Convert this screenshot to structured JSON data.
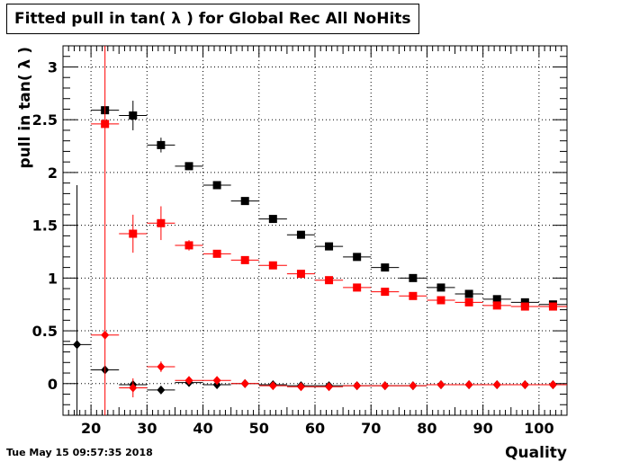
{
  "footer": {
    "timestamp": "Tue May 15 09:57:35 2018"
  },
  "chart_data": {
    "type": "scatter",
    "title": "Fitted pull in tan( λ ) for Global Rec All NoHits",
    "xlabel": "Quality",
    "ylabel": "pull in tan( λ )",
    "xlim": [
      15,
      105
    ],
    "ylim": [
      -0.3,
      3.2
    ],
    "x_ticks": [
      20,
      30,
      40,
      50,
      60,
      70,
      80,
      90,
      100
    ],
    "y_ticks": [
      0,
      0.5,
      1,
      1.5,
      2,
      2.5,
      3
    ],
    "y_tick_labels": [
      "0",
      "0.5",
      "1",
      "1.5",
      "2",
      "2.5",
      "3"
    ],
    "grid": true,
    "x_bin_halfwidth": 2.5,
    "series": [
      {
        "marker": "square",
        "color": "#000000",
        "points": [
          {
            "x": 22.5,
            "y": 2.59,
            "yerr": 0.0
          },
          {
            "x": 27.5,
            "y": 2.54,
            "yerr": 0.14
          },
          {
            "x": 32.5,
            "y": 2.26,
            "yerr": 0.07
          },
          {
            "x": 37.5,
            "y": 2.06,
            "yerr": 0.03
          },
          {
            "x": 42.5,
            "y": 1.88,
            "yerr": 0.02
          },
          {
            "x": 47.5,
            "y": 1.73,
            "yerr": 0.01
          },
          {
            "x": 52.5,
            "y": 1.56,
            "yerr": 0.01
          },
          {
            "x": 57.5,
            "y": 1.41,
            "yerr": 0.01
          },
          {
            "x": 62.5,
            "y": 1.3,
            "yerr": 0.01
          },
          {
            "x": 67.5,
            "y": 1.2,
            "yerr": 0.01
          },
          {
            "x": 72.5,
            "y": 1.1,
            "yerr": 0.01
          },
          {
            "x": 77.5,
            "y": 1.0,
            "yerr": 0.01
          },
          {
            "x": 82.5,
            "y": 0.91,
            "yerr": 0.01
          },
          {
            "x": 87.5,
            "y": 0.85,
            "yerr": 0.01
          },
          {
            "x": 92.5,
            "y": 0.8,
            "yerr": 0.01
          },
          {
            "x": 97.5,
            "y": 0.77,
            "yerr": 0.01
          },
          {
            "x": 102.5,
            "y": 0.75,
            "yerr": 0.01
          }
        ]
      },
      {
        "marker": "square",
        "color": "#ff0000",
        "points": [
          {
            "x": 22.5,
            "y": 2.46,
            "yerr": 0.0
          },
          {
            "x": 27.5,
            "y": 1.42,
            "yerr": 0.18
          },
          {
            "x": 32.5,
            "y": 1.52,
            "yerr": 0.16
          },
          {
            "x": 37.5,
            "y": 1.31,
            "yerr": 0.05
          },
          {
            "x": 42.5,
            "y": 1.23,
            "yerr": 0.02
          },
          {
            "x": 47.5,
            "y": 1.17,
            "yerr": 0.01
          },
          {
            "x": 52.5,
            "y": 1.12,
            "yerr": 0.01
          },
          {
            "x": 57.5,
            "y": 1.04,
            "yerr": 0.01
          },
          {
            "x": 62.5,
            "y": 0.98,
            "yerr": 0.01
          },
          {
            "x": 67.5,
            "y": 0.91,
            "yerr": 0.01
          },
          {
            "x": 72.5,
            "y": 0.87,
            "yerr": 0.01
          },
          {
            "x": 77.5,
            "y": 0.83,
            "yerr": 0.01
          },
          {
            "x": 82.5,
            "y": 0.79,
            "yerr": 0.01
          },
          {
            "x": 87.5,
            "y": 0.77,
            "yerr": 0.01
          },
          {
            "x": 92.5,
            "y": 0.74,
            "yerr": 0.01
          },
          {
            "x": 97.5,
            "y": 0.73,
            "yerr": 0.01
          },
          {
            "x": 102.5,
            "y": 0.73,
            "yerr": 0.01
          }
        ]
      },
      {
        "marker": "diamond",
        "color": "#000000",
        "points": [
          {
            "x": 17.5,
            "y": 0.37,
            "yerr_up": 1.51,
            "yerr_down": 0.67
          },
          {
            "x": 22.5,
            "y": 0.13,
            "yerr": 0.02
          },
          {
            "x": 27.5,
            "y": -0.01,
            "yerr": 0.03
          },
          {
            "x": 32.5,
            "y": -0.06,
            "yerr": 0.02
          },
          {
            "x": 37.5,
            "y": 0.01,
            "yerr": 0.01
          },
          {
            "x": 42.5,
            "y": -0.01,
            "yerr": 0.01
          },
          {
            "x": 47.5,
            "y": 0.0,
            "yerr": 0.01
          },
          {
            "x": 52.5,
            "y": -0.01,
            "yerr": 0.005
          },
          {
            "x": 57.5,
            "y": -0.02,
            "yerr": 0.005
          },
          {
            "x": 62.5,
            "y": -0.02,
            "yerr": 0.005
          },
          {
            "x": 67.5,
            "y": -0.02,
            "yerr": 0.005
          },
          {
            "x": 72.5,
            "y": -0.02,
            "yerr": 0.005
          },
          {
            "x": 77.5,
            "y": -0.02,
            "yerr": 0.005
          },
          {
            "x": 82.5,
            "y": -0.01,
            "yerr": 0.005
          },
          {
            "x": 87.5,
            "y": -0.01,
            "yerr": 0.005
          },
          {
            "x": 92.5,
            "y": -0.01,
            "yerr": 0.005
          },
          {
            "x": 97.5,
            "y": -0.01,
            "yerr": 0.005
          },
          {
            "x": 102.5,
            "y": -0.01,
            "yerr": 0.005
          }
        ]
      },
      {
        "marker": "diamond",
        "color": "#ff0000",
        "points": [
          {
            "x": 22.5,
            "y": 0.46,
            "yerr_up": 2.74,
            "yerr_down": 0.76
          },
          {
            "x": 27.5,
            "y": -0.04,
            "yerr": 0.09
          },
          {
            "x": 32.5,
            "y": 0.16,
            "yerr": 0.05
          },
          {
            "x": 37.5,
            "y": 0.03,
            "yerr": 0.02
          },
          {
            "x": 42.5,
            "y": 0.03,
            "yerr": 0.01
          },
          {
            "x": 47.5,
            "y": 0.0,
            "yerr": 0.01
          },
          {
            "x": 52.5,
            "y": -0.02,
            "yerr": 0.005
          },
          {
            "x": 57.5,
            "y": -0.03,
            "yerr": 0.005
          },
          {
            "x": 62.5,
            "y": -0.03,
            "yerr": 0.005
          },
          {
            "x": 67.5,
            "y": -0.02,
            "yerr": 0.005
          },
          {
            "x": 72.5,
            "y": -0.02,
            "yerr": 0.005
          },
          {
            "x": 77.5,
            "y": -0.02,
            "yerr": 0.005
          },
          {
            "x": 82.5,
            "y": -0.01,
            "yerr": 0.005
          },
          {
            "x": 87.5,
            "y": -0.01,
            "yerr": 0.005
          },
          {
            "x": 92.5,
            "y": -0.01,
            "yerr": 0.005
          },
          {
            "x": 97.5,
            "y": -0.01,
            "yerr": 0.005
          },
          {
            "x": 102.5,
            "y": -0.01,
            "yerr": 0.005
          }
        ]
      }
    ]
  }
}
